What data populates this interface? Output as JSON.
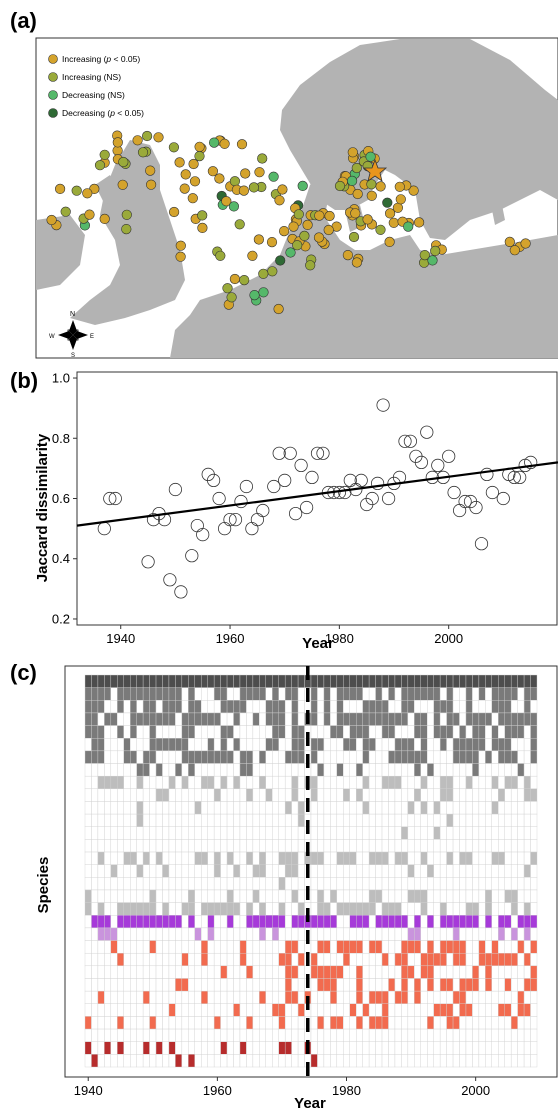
{
  "panels": {
    "a": "(a)",
    "b": "(b)",
    "c": "(c)"
  },
  "compass": {
    "n": "N",
    "s": "S",
    "e": "E",
    "w": "W"
  },
  "map": {
    "legend": [
      {
        "label_main": "Increasing (",
        "label_p": "p",
        "label_rest": " < 0.05)",
        "color": "#d4a32c"
      },
      {
        "label_main": "Increasing (NS)",
        "label_p": "",
        "label_rest": "",
        "color": "#9aaa3a"
      },
      {
        "label_main": "Decreasing (NS)",
        "label_p": "",
        "label_rest": "",
        "color": "#55b86a"
      },
      {
        "label_main": "Decreasing (",
        "label_p": "p",
        "label_rest": " < 0.05)",
        "color": "#2f6a35"
      }
    ],
    "colors": {
      "land": "#b3b3b3",
      "sea": "#ffffff",
      "star": "#e8951d"
    }
  },
  "chart_data": [
    {
      "type": "scatter",
      "title": "",
      "xlabel": "Year",
      "ylabel": "Jaccard dissimilarity",
      "xlim": [
        1932,
        2020
      ],
      "ylim": [
        0.18,
        1.02
      ],
      "xticks": [
        1940,
        1960,
        1980,
        2000
      ],
      "yticks": [
        0.2,
        0.4,
        0.6,
        0.8,
        1.0
      ],
      "ytick_labels": [
        "0.2",
        "0.4",
        "0.6",
        "0.8",
        "1.0"
      ],
      "grid": false,
      "trendline": {
        "x": [
          1932,
          2020
        ],
        "y": [
          0.51,
          0.72
        ]
      },
      "points": [
        [
          1937,
          0.5
        ],
        [
          1938,
          0.6
        ],
        [
          1939,
          0.6
        ],
        [
          1945,
          0.39
        ],
        [
          1946,
          0.53
        ],
        [
          1947,
          0.55
        ],
        [
          1948,
          0.53
        ],
        [
          1949,
          0.33
        ],
        [
          1950,
          0.63
        ],
        [
          1951,
          0.29
        ],
        [
          1953,
          0.41
        ],
        [
          1954,
          0.51
        ],
        [
          1955,
          0.48
        ],
        [
          1956,
          0.68
        ],
        [
          1957,
          0.66
        ],
        [
          1958,
          0.6
        ],
        [
          1959,
          0.5
        ],
        [
          1960,
          0.53
        ],
        [
          1961,
          0.53
        ],
        [
          1962,
          0.59
        ],
        [
          1963,
          0.64
        ],
        [
          1964,
          0.5
        ],
        [
          1965,
          0.53
        ],
        [
          1966,
          0.56
        ],
        [
          1968,
          0.64
        ],
        [
          1969,
          0.75
        ],
        [
          1970,
          0.66
        ],
        [
          1971,
          0.75
        ],
        [
          1972,
          0.55
        ],
        [
          1973,
          0.71
        ],
        [
          1974,
          0.57
        ],
        [
          1975,
          0.67
        ],
        [
          1976,
          0.75
        ],
        [
          1977,
          0.75
        ],
        [
          1978,
          0.62
        ],
        [
          1979,
          0.62
        ],
        [
          1980,
          0.62
        ],
        [
          1981,
          0.62
        ],
        [
          1982,
          0.66
        ],
        [
          1983,
          0.63
        ],
        [
          1984,
          0.66
        ],
        [
          1985,
          0.58
        ],
        [
          1986,
          0.6
        ],
        [
          1987,
          0.65
        ],
        [
          1988,
          0.91
        ],
        [
          1989,
          0.6
        ],
        [
          1990,
          0.65
        ],
        [
          1991,
          0.67
        ],
        [
          1992,
          0.79
        ],
        [
          1993,
          0.79
        ],
        [
          1994,
          0.74
        ],
        [
          1995,
          0.72
        ],
        [
          1996,
          0.82
        ],
        [
          1997,
          0.67
        ],
        [
          1998,
          0.71
        ],
        [
          1999,
          0.67
        ],
        [
          2000,
          0.74
        ],
        [
          2001,
          0.62
        ],
        [
          2002,
          0.56
        ],
        [
          2003,
          0.59
        ],
        [
          2004,
          0.59
        ],
        [
          2005,
          0.57
        ],
        [
          2006,
          0.45
        ],
        [
          2007,
          0.68
        ],
        [
          2008,
          0.62
        ],
        [
          2010,
          0.6
        ],
        [
          2011,
          0.68
        ],
        [
          2012,
          0.67
        ],
        [
          2013,
          0.67
        ],
        [
          2014,
          0.71
        ],
        [
          2015,
          0.72
        ]
      ]
    },
    {
      "type": "heatmap",
      "title": "",
      "xlabel": "Year",
      "ylabel": "Species",
      "xlim": [
        1940,
        2009
      ],
      "xticks": [
        1940,
        1960,
        1980,
        2000
      ],
      "vline": 1974,
      "grid": true,
      "n_columns": 70,
      "rows": [
        {
          "color": "#4d4d4d",
          "p": 1.0
        },
        {
          "color": "#7a7a7a",
          "p": 0.62
        },
        {
          "color": "#7a7a7a",
          "p": 0.55
        },
        {
          "color": "#7a7a7a",
          "p": 0.78
        },
        {
          "color": "#7a7a7a",
          "p": 0.48
        },
        {
          "color": "#7a7a7a",
          "p": 0.62
        },
        {
          "color": "#7a7a7a",
          "p": 0.58
        },
        {
          "color": "#7a7a7a",
          "p": 0.22
        },
        {
          "color": "#bdbdbd",
          "p": 0.45
        },
        {
          "color": "#bdbdbd",
          "p": 0.2
        },
        {
          "color": "#bdbdbd",
          "p": 0.1
        },
        {
          "color": "#bdbdbd",
          "p": 0.08
        },
        {
          "color": "#bdbdbd",
          "p": 0.03
        },
        {
          "color": "#bdbdbd",
          "p": 0.0
        },
        {
          "color": "#bdbdbd",
          "p": 0.4
        },
        {
          "color": "#bdbdbd",
          "p": 0.2
        },
        {
          "color": "#bdbdbd",
          "p": 0.04
        },
        {
          "color": "#bdbdbd",
          "p": 0.25
        },
        {
          "color": "#bdbdbd",
          "p": 0.55
        },
        {
          "color": "#a63ad9",
          "p": 0.7
        },
        {
          "color": "#c994dd",
          "p": 0.15
        },
        {
          "color": "#f26b4f",
          "p": 0.45
        },
        {
          "color": "#f26b4f",
          "p": 0.4
        },
        {
          "color": "#f26b4f",
          "p": 0.45
        },
        {
          "color": "#f26b4f",
          "p": 0.48
        },
        {
          "color": "#f26b4f",
          "p": 0.4
        },
        {
          "color": "#f26b4f",
          "p": 0.38
        },
        {
          "color": "#f26b4f",
          "p": 0.3
        },
        {
          "color": "#f26b4f",
          "p": 0.05
        },
        {
          "color": "#b72c2c",
          "p": 0.45
        },
        {
          "color": "#b72c2c",
          "p": 0.12
        }
      ]
    }
  ]
}
